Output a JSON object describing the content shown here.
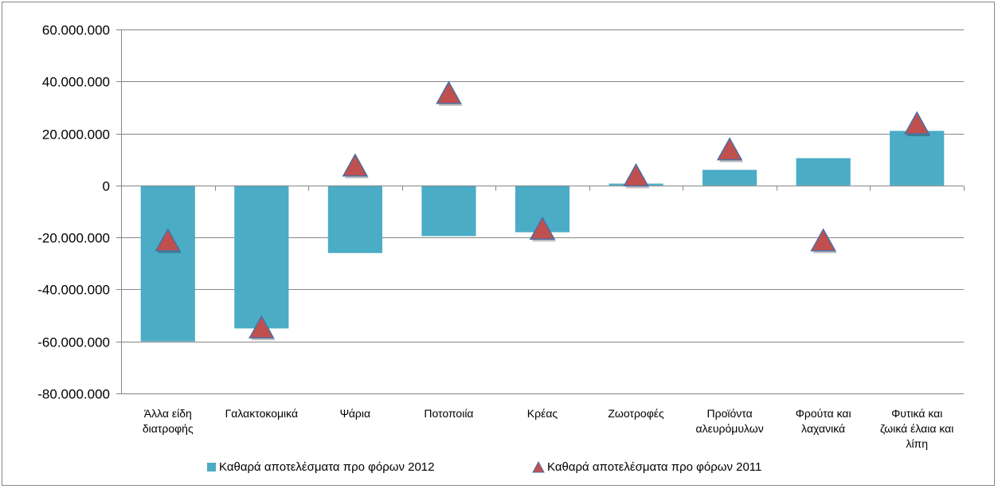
{
  "chart_data": {
    "type": "bar",
    "categories": [
      [
        "Άλλα είδη",
        "διατροφής"
      ],
      [
        "Γαλακτοκομικά"
      ],
      [
        "Ψάρια"
      ],
      [
        "Ποτοποιία"
      ],
      [
        "Κρέας"
      ],
      [
        "Ζωοτροφές"
      ],
      [
        "Προϊόντα",
        "αλευρόμυλων"
      ],
      [
        "Φρούτα και",
        "λαχανικά"
      ],
      [
        "Φυτικά και",
        "ζωικά έλαια και",
        "λίπη"
      ]
    ],
    "series": [
      {
        "name": "Καθαρά αποτελέσματα προ φόρων 2012",
        "type": "bar",
        "color": "#4bacc6",
        "values": [
          -60000000,
          -55000000,
          -26000000,
          -19500000,
          -18000000,
          700000,
          6000000,
          10500000,
          21000000
        ]
      },
      {
        "name": "Καθαρά αποτελέσματα προ φόρων 2011",
        "type": "marker-triangle",
        "color": "#c0504d",
        "values": [
          -22000000,
          -55500000,
          6800000,
          34700000,
          -17500000,
          3000000,
          13000000,
          -22000000,
          23000000
        ]
      }
    ],
    "yticks": [
      "60.000.000",
      "40.000.000",
      "20.000.000",
      "0",
      "-20.000.000",
      "-40.000.000",
      "-60.000.000",
      "-80.000.000"
    ],
    "ytick_values": [
      60000000,
      40000000,
      20000000,
      0,
      -20000000,
      -40000000,
      -60000000,
      -80000000
    ],
    "ylim": [
      -80000000,
      60000000
    ],
    "grid": true,
    "legend_position": "bottom"
  }
}
